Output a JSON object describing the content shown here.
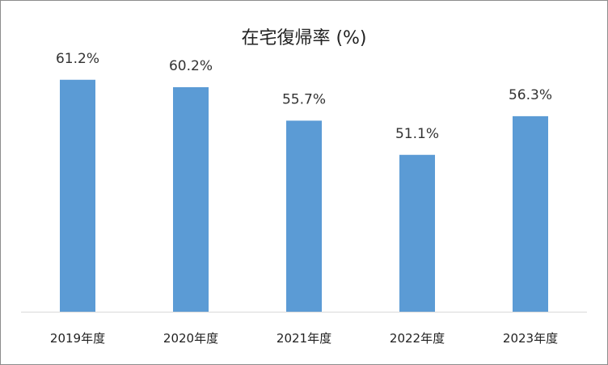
{
  "chart_data": {
    "type": "bar",
    "title": "在宅復帰率 (%)",
    "categories": [
      "2019年度",
      "2020年度",
      "2021年度",
      "2022年度",
      "2023年度"
    ],
    "values": [
      61.2,
      60.2,
      55.7,
      51.1,
      56.3
    ],
    "data_labels": [
      "61.2%",
      "60.2%",
      "55.7%",
      "51.1%",
      "56.3%"
    ],
    "unit": "%",
    "bar_color": "#5b9bd5",
    "axis_color": "#d9d9d9",
    "ylim": [
      30,
      64
    ],
    "grid": false,
    "legend": "none"
  }
}
